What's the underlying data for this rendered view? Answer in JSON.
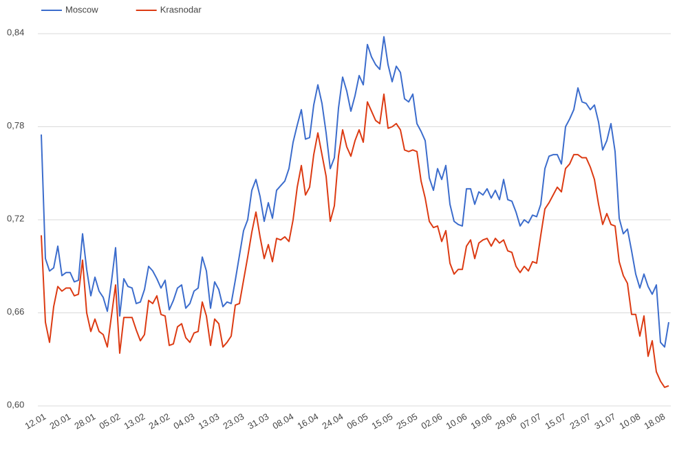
{
  "chart_data": {
    "type": "line",
    "categories": [
      "12.01",
      null,
      null,
      null,
      null,
      null,
      "20.01",
      null,
      null,
      null,
      null,
      null,
      "28.01",
      null,
      null,
      null,
      null,
      null,
      "05.02",
      null,
      null,
      null,
      null,
      null,
      "13.02",
      null,
      null,
      null,
      null,
      null,
      "24.02",
      null,
      null,
      null,
      null,
      null,
      "04.03",
      null,
      null,
      null,
      null,
      null,
      "13.03",
      null,
      null,
      null,
      null,
      null,
      "23.03",
      null,
      null,
      null,
      null,
      null,
      "31.03",
      null,
      null,
      null,
      null,
      null,
      "08.04",
      null,
      null,
      null,
      null,
      null,
      "16.04",
      null,
      null,
      null,
      null,
      null,
      "24.04",
      null,
      null,
      null,
      null,
      null,
      "06.05",
      null,
      null,
      null,
      null,
      null,
      "15.05",
      null,
      null,
      null,
      null,
      null,
      "25.05",
      null,
      null,
      null,
      null,
      null,
      "02.06",
      null,
      null,
      null,
      null,
      null,
      "10.06",
      null,
      null,
      null,
      null,
      null,
      "19.06",
      null,
      null,
      null,
      null,
      null,
      "29.06",
      null,
      null,
      null,
      null,
      null,
      "07.07",
      null,
      null,
      null,
      null,
      null,
      "15.07",
      null,
      null,
      null,
      null,
      null,
      "23.07",
      null,
      null,
      null,
      null,
      null,
      "31.07",
      null,
      null,
      null,
      null,
      null,
      "10.08",
      null,
      null,
      null,
      null,
      null,
      "18.08",
      null,
      null
    ],
    "series": [
      {
        "name": "Moscow",
        "color": "#3b6ccc",
        "values": [
          0.775,
          0.695,
          0.687,
          0.689,
          0.703,
          0.684,
          0.686,
          0.686,
          0.68,
          0.681,
          0.711,
          0.688,
          0.671,
          0.683,
          0.674,
          0.67,
          0.661,
          0.68,
          0.702,
          0.658,
          0.682,
          0.677,
          0.676,
          0.666,
          0.667,
          0.675,
          0.69,
          0.687,
          0.682,
          0.676,
          0.681,
          0.662,
          0.668,
          0.676,
          0.678,
          0.663,
          0.666,
          0.674,
          0.676,
          0.696,
          0.687,
          0.663,
          0.68,
          0.675,
          0.664,
          0.667,
          0.666,
          0.681,
          0.697,
          0.713,
          0.72,
          0.739,
          0.746,
          0.735,
          0.719,
          0.731,
          0.721,
          0.739,
          0.742,
          0.745,
          0.753,
          0.77,
          0.781,
          0.791,
          0.772,
          0.773,
          0.794,
          0.807,
          0.795,
          0.776,
          0.753,
          0.76,
          0.792,
          0.812,
          0.803,
          0.79,
          0.8,
          0.813,
          0.807,
          0.833,
          0.825,
          0.82,
          0.817,
          0.838,
          0.82,
          0.809,
          0.819,
          0.815,
          0.798,
          0.796,
          0.801,
          0.782,
          0.777,
          0.771,
          0.747,
          0.739,
          0.753,
          0.746,
          0.755,
          0.73,
          0.719,
          0.717,
          0.716,
          0.74,
          0.74,
          0.73,
          0.738,
          0.736,
          0.74,
          0.734,
          0.739,
          0.733,
          0.746,
          0.733,
          0.732,
          0.725,
          0.716,
          0.72,
          0.718,
          0.723,
          0.722,
          0.73,
          0.753,
          0.761,
          0.762,
          0.762,
          0.756,
          0.78,
          0.785,
          0.791,
          0.805,
          0.796,
          0.795,
          0.791,
          0.794,
          0.783,
          0.765,
          0.771,
          0.782,
          0.764,
          0.721,
          0.711,
          0.714,
          0.7,
          0.685,
          0.676,
          0.685,
          0.677,
          0.672,
          0.678,
          0.641,
          0.638,
          0.654
        ]
      },
      {
        "name": "Krasnodar",
        "color": "#dc3a12",
        "values": [
          0.71,
          0.654,
          0.641,
          0.664,
          0.677,
          0.674,
          0.676,
          0.676,
          0.671,
          0.672,
          0.694,
          0.66,
          0.648,
          0.656,
          0.648,
          0.646,
          0.638,
          0.658,
          0.678,
          0.634,
          0.657,
          0.657,
          0.657,
          0.649,
          0.642,
          0.646,
          0.668,
          0.666,
          0.671,
          0.659,
          0.658,
          0.639,
          0.64,
          0.651,
          0.653,
          0.644,
          0.641,
          0.647,
          0.648,
          0.667,
          0.658,
          0.639,
          0.656,
          0.653,
          0.638,
          0.641,
          0.645,
          0.665,
          0.666,
          0.681,
          0.696,
          0.712,
          0.725,
          0.709,
          0.695,
          0.704,
          0.693,
          0.708,
          0.707,
          0.709,
          0.706,
          0.72,
          0.741,
          0.755,
          0.736,
          0.741,
          0.762,
          0.776,
          0.762,
          0.748,
          0.719,
          0.729,
          0.761,
          0.778,
          0.767,
          0.761,
          0.771,
          0.778,
          0.77,
          0.796,
          0.79,
          0.784,
          0.782,
          0.801,
          0.779,
          0.78,
          0.782,
          0.778,
          0.765,
          0.764,
          0.765,
          0.764,
          0.745,
          0.734,
          0.719,
          0.715,
          0.716,
          0.706,
          0.713,
          0.692,
          0.685,
          0.688,
          0.688,
          0.703,
          0.707,
          0.695,
          0.705,
          0.707,
          0.708,
          0.703,
          0.708,
          0.705,
          0.707,
          0.7,
          0.699,
          0.69,
          0.686,
          0.69,
          0.687,
          0.693,
          0.692,
          0.71,
          0.727,
          0.731,
          0.736,
          0.741,
          0.738,
          0.753,
          0.756,
          0.762,
          0.762,
          0.76,
          0.76,
          0.754,
          0.746,
          0.73,
          0.717,
          0.724,
          0.717,
          0.716,
          0.693,
          0.684,
          0.679,
          0.659,
          0.659,
          0.645,
          0.658,
          0.632,
          0.642,
          0.622,
          0.616,
          0.612,
          0.613
        ]
      }
    ],
    "ylim": [
      0.6,
      0.84
    ],
    "yticks": [
      {
        "value": 0.6,
        "label": "0,60"
      },
      {
        "value": 0.66,
        "label": "0,66"
      },
      {
        "value": 0.72,
        "label": "0,72"
      },
      {
        "value": 0.78,
        "label": "0,78"
      },
      {
        "value": 0.84,
        "label": "0,84"
      }
    ],
    "grid": true,
    "legend": "top"
  }
}
